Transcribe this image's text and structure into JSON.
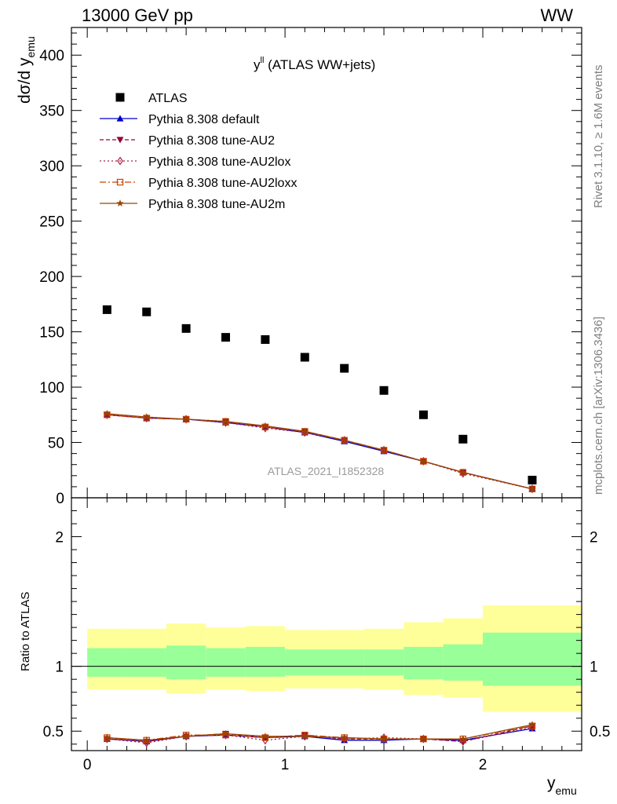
{
  "header": {
    "left": "13000 GeV pp",
    "right": "WW"
  },
  "side_labels": {
    "rivet": "Rivet 3.1.10, ≥ 1.6M events",
    "mcplots": "mcplots.cern.ch [arXiv:1306.3436]"
  },
  "chart_data": [
    {
      "type": "scatter",
      "title": "y^ll (ATLAS WW+jets)",
      "title_main": "y",
      "title_sup": "ll",
      "title_rest": " (ATLAS WW+jets)",
      "watermark": "ATLAS_2021_I1852328",
      "ylabel": "dσ/d y_emu",
      "ylabel_main": "dσ/d y",
      "ylabel_sub": "emu",
      "xlim": [
        -0.08,
        2.5
      ],
      "ylim": [
        0,
        425
      ],
      "yticks": [
        0,
        50,
        100,
        150,
        200,
        250,
        300,
        350,
        400
      ],
      "ytick_labels": [
        "0",
        "50",
        "100",
        "150",
        "200",
        "250",
        "300",
        "350",
        "400"
      ],
      "legend_position": "top-left",
      "x": [
        0.1,
        0.3,
        0.5,
        0.7,
        0.9,
        1.1,
        1.3,
        1.5,
        1.7,
        1.9,
        2.25
      ],
      "bin_edges": [
        0.0,
        0.2,
        0.4,
        0.6,
        0.8,
        1.0,
        1.2,
        1.4,
        1.6,
        1.8,
        2.0,
        2.5
      ],
      "series": [
        {
          "name": "ATLAS",
          "color": "#000000",
          "marker": "square",
          "values": [
            170,
            168,
            153,
            145,
            143,
            127,
            117,
            97,
            75,
            53,
            16
          ]
        },
        {
          "name": "Pythia 8.308 default",
          "color": "#0000cc",
          "marker": "triangle-up",
          "dash": "",
          "values": [
            75,
            72,
            71,
            68,
            64,
            59,
            51,
            42,
            33,
            23,
            8
          ]
        },
        {
          "name": "Pythia 8.308 tune-AU2",
          "color": "#990033",
          "marker": "triangle-down",
          "dash": "5,3",
          "values": [
            75,
            72,
            71,
            69,
            64,
            60,
            52,
            43,
            33,
            23,
            8
          ]
        },
        {
          "name": "Pythia 8.308 tune-AU2lox",
          "color": "#aa2244",
          "marker": "diamond-open",
          "dash": "2,3",
          "values": [
            75,
            72,
            71,
            68,
            63,
            59,
            52,
            43,
            33,
            22,
            8
          ]
        },
        {
          "name": "Pythia 8.308 tune-AU2loxx",
          "color": "#cc4400",
          "marker": "square-open",
          "dash": "8,3,2,3",
          "values": [
            75,
            72,
            71,
            69,
            64,
            60,
            52,
            43,
            33,
            23,
            8
          ]
        },
        {
          "name": "Pythia 8.308 tune-AU2m",
          "color": "#994400",
          "marker": "star",
          "dash": "",
          "values": [
            76,
            73,
            71,
            69,
            65,
            60,
            52,
            43,
            33,
            23,
            8
          ]
        }
      ]
    },
    {
      "type": "line",
      "ylabel": "Ratio to ATLAS",
      "xlabel": "y_emu",
      "xlabel_main": "y",
      "xlabel_sub": "emu",
      "xlim": [
        -0.08,
        2.5
      ],
      "ylim": [
        0.35,
        2.3
      ],
      "xticks": [
        0,
        1,
        2
      ],
      "xtick_labels": [
        "0",
        "1",
        "2"
      ],
      "yticks": [
        0.5,
        1,
        2
      ],
      "ytick_labels": [
        "0.5",
        "1",
        "2"
      ],
      "reference_line": 1,
      "x": [
        0.1,
        0.3,
        0.5,
        0.7,
        0.9,
        1.1,
        1.3,
        1.5,
        1.7,
        1.9,
        2.25
      ],
      "bin_edges": [
        0.0,
        0.2,
        0.4,
        0.6,
        0.8,
        1.0,
        1.2,
        1.4,
        1.6,
        1.8,
        2.0,
        2.5
      ],
      "bands": {
        "inner_color": "#99ff99",
        "outer_color": "#ffff99",
        "inner_low": [
          0.92,
          0.92,
          0.9,
          0.92,
          0.92,
          0.93,
          0.93,
          0.93,
          0.9,
          0.89,
          0.85
        ],
        "inner_high": [
          1.14,
          1.14,
          1.16,
          1.14,
          1.15,
          1.13,
          1.13,
          1.13,
          1.15,
          1.17,
          1.26
        ],
        "outer_low": [
          0.82,
          0.82,
          0.79,
          0.82,
          0.81,
          0.83,
          0.83,
          0.82,
          0.78,
          0.76,
          0.65
        ],
        "outer_high": [
          1.29,
          1.29,
          1.33,
          1.3,
          1.31,
          1.28,
          1.28,
          1.29,
          1.34,
          1.37,
          1.47
        ]
      },
      "series": [
        {
          "name": "Pythia 8.308 default",
          "values": [
            0.44,
            0.42,
            0.46,
            0.47,
            0.45,
            0.46,
            0.43,
            0.43,
            0.44,
            0.43,
            0.52
          ]
        },
        {
          "name": "Pythia 8.308 tune-AU2",
          "values": [
            0.44,
            0.42,
            0.46,
            0.48,
            0.45,
            0.47,
            0.44,
            0.44,
            0.44,
            0.42,
            0.54
          ]
        },
        {
          "name": "Pythia 8.308 tune-AU2lox",
          "values": [
            0.44,
            0.41,
            0.46,
            0.47,
            0.43,
            0.46,
            0.44,
            0.45,
            0.44,
            0.42,
            0.53
          ]
        },
        {
          "name": "Pythia 8.308 tune-AU2loxx",
          "values": [
            0.45,
            0.43,
            0.47,
            0.47,
            0.45,
            0.47,
            0.45,
            0.44,
            0.44,
            0.44,
            0.54
          ]
        },
        {
          "name": "Pythia 8.308 tune-AU2m",
          "values": [
            0.45,
            0.43,
            0.46,
            0.48,
            0.46,
            0.46,
            0.45,
            0.44,
            0.44,
            0.44,
            0.55
          ]
        }
      ]
    }
  ]
}
